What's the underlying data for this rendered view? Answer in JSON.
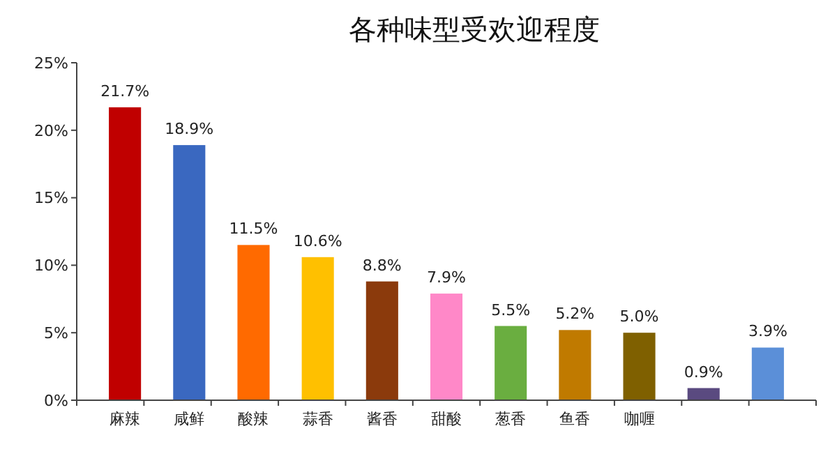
{
  "chart_data": {
    "type": "bar",
    "title": "各种味型受欢迎程度",
    "categories": [
      "麻辣",
      "咸鲜",
      "酸辣",
      "蒜香",
      "酱香",
      "甜酸",
      "葱香",
      "鱼香",
      "咖喱",
      null,
      null
    ],
    "values": [
      21.7,
      18.9,
      11.5,
      10.6,
      8.8,
      7.9,
      5.5,
      5.2,
      5.0,
      0.9,
      3.9
    ],
    "colors": [
      "#c00000",
      "#3a68c0",
      "#ff6a00",
      "#ffc000",
      "#8b3a0c",
      "#ff88c8",
      "#6aae40",
      "#c07a00",
      "#7f6000",
      "#5a4a80",
      "#5b8fd8"
    ],
    "value_labels": [
      "21.7%",
      "18.9%",
      "11.5%",
      "10.6%",
      "8.8%",
      "7.9%",
      "5.5%",
      "5.2%",
      "5.0%",
      "0.9%",
      "3.9%"
    ],
    "ylim": [
      0,
      25
    ],
    "yticks": [
      {
        "value": 0,
        "label": "0%"
      },
      {
        "value": 5,
        "label": "5%"
      },
      {
        "value": 10,
        "label": "10%"
      },
      {
        "value": 15,
        "label": "15%"
      },
      {
        "value": 20,
        "label": "20%"
      },
      {
        "value": 25,
        "label": "25%"
      }
    ],
    "grid": false
  }
}
